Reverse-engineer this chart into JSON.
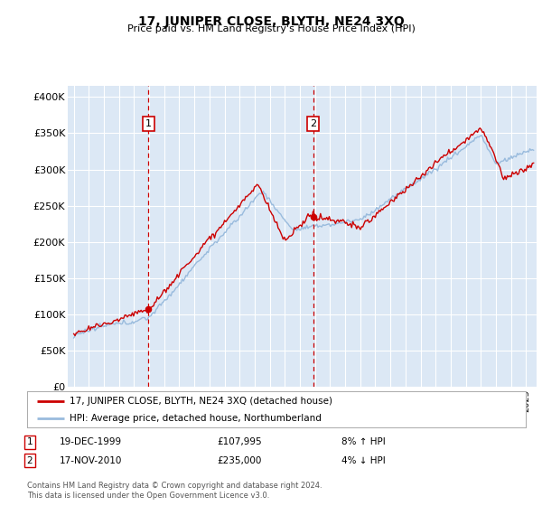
{
  "title": "17, JUNIPER CLOSE, BLYTH, NE24 3XQ",
  "subtitle": "Price paid vs. HM Land Registry's House Price Index (HPI)",
  "ylabel_ticks": [
    "£0",
    "£50K",
    "£100K",
    "£150K",
    "£200K",
    "£250K",
    "£300K",
    "£350K",
    "£400K"
  ],
  "ytick_values": [
    0,
    50000,
    100000,
    150000,
    200000,
    250000,
    300000,
    350000,
    400000
  ],
  "ylim": [
    0,
    415000
  ],
  "xlim_start": 1994.6,
  "xlim_end": 2025.7,
  "sale1_x": 1999.96,
  "sale1_y": 107995,
  "sale1_label": "1",
  "sale1_date": "19-DEC-1999",
  "sale1_price": "£107,995",
  "sale1_hpi": "8% ↑ HPI",
  "sale2_x": 2010.88,
  "sale2_y": 235000,
  "sale2_label": "2",
  "sale2_date": "17-NOV-2010",
  "sale2_price": "£235,000",
  "sale2_hpi": "4% ↓ HPI",
  "line_color_property": "#cc0000",
  "line_color_hpi": "#99bbdd",
  "background_color": "#dce8f5",
  "grid_color": "#ffffff",
  "legend_label_property": "17, JUNIPER CLOSE, BLYTH, NE24 3XQ (detached house)",
  "legend_label_hpi": "HPI: Average price, detached house, Northumberland",
  "footer": "Contains HM Land Registry data © Crown copyright and database right 2024.\nThis data is licensed under the Open Government Licence v3.0."
}
